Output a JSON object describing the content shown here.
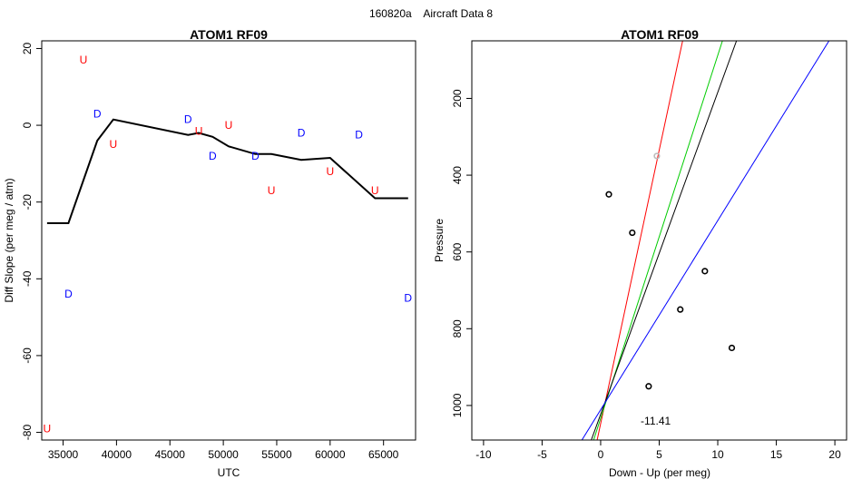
{
  "figure": {
    "title_code": "160820a",
    "title_text": "Aircraft Data 8"
  },
  "chart_data": [
    {
      "type": "scatter",
      "title": "ATOM1 RF09",
      "xlabel": "UTC",
      "ylabel": "Diff Slope (per meg / atm)",
      "xlim": [
        33000,
        68000
      ],
      "ylim": [
        -82,
        22
      ],
      "xticks": [
        35000,
        40000,
        45000,
        50000,
        55000,
        60000,
        65000
      ],
      "yticks": [
        -80,
        -60,
        -40,
        -20,
        0,
        20
      ],
      "line": {
        "x": [
          33500,
          35500,
          38200,
          39700,
          46700,
          47700,
          49000,
          50500,
          53000,
          54500,
          57300,
          60000,
          64200,
          67300
        ],
        "y": [
          -25.5,
          -25.5,
          -4,
          1.5,
          -2.5,
          -2,
          -3,
          -5.5,
          -7.5,
          -7.5,
          -9,
          -8.5,
          -19,
          -19
        ]
      },
      "points": [
        {
          "label": "U",
          "x": 33500,
          "y": -79
        },
        {
          "label": "U",
          "x": 36900,
          "y": 17
        },
        {
          "label": "D",
          "x": 35500,
          "y": -44
        },
        {
          "label": "D",
          "x": 38200,
          "y": 3
        },
        {
          "label": "U",
          "x": 39700,
          "y": -5
        },
        {
          "label": "D",
          "x": 46700,
          "y": 1.5
        },
        {
          "label": "U",
          "x": 47700,
          "y": -1.5
        },
        {
          "label": "D",
          "x": 49000,
          "y": -8
        },
        {
          "label": "U",
          "x": 50500,
          "y": 0
        },
        {
          "label": "D",
          "x": 53000,
          "y": -8
        },
        {
          "label": "U",
          "x": 54500,
          "y": -17
        },
        {
          "label": "D",
          "x": 57300,
          "y": -2
        },
        {
          "label": "U",
          "x": 60000,
          "y": -12
        },
        {
          "label": "D",
          "x": 62700,
          "y": -2.5
        },
        {
          "label": "U",
          "x": 64200,
          "y": -17
        },
        {
          "label": "D",
          "x": 67300,
          "y": -45
        }
      ],
      "colors": {
        "U": "#ff0000",
        "D": "#0000ff",
        "line": "#000000"
      }
    },
    {
      "type": "scatter",
      "title": "ATOM1 RF09",
      "xlabel": "Down - Up (per meg)",
      "ylabel": "Pressure",
      "xlim": [
        -11,
        21
      ],
      "ylim": [
        1090,
        50
      ],
      "y_reversed": true,
      "xticks": [
        -10,
        -5,
        0,
        5,
        10,
        15,
        20
      ],
      "yticks": [
        200,
        400,
        600,
        800,
        1000
      ],
      "points": [
        {
          "x": 0.7,
          "y": 450,
          "color": "#000000"
        },
        {
          "x": 2.7,
          "y": 550,
          "color": "#000000"
        },
        {
          "x": 4.8,
          "y": 350,
          "color": "#bbbbbb"
        },
        {
          "x": 8.9,
          "y": 650,
          "color": "#000000"
        },
        {
          "x": 6.8,
          "y": 750,
          "color": "#000000"
        },
        {
          "x": 11.2,
          "y": 850,
          "color": "#000000"
        },
        {
          "x": 4.1,
          "y": 950,
          "color": "#000000"
        }
      ],
      "lines": [
        {
          "color": "#ff0000",
          "x": [
            -0.3,
            7.0
          ],
          "y": [
            1090,
            50
          ]
        },
        {
          "color": "#00cc00",
          "x": [
            -0.6,
            10.4
          ],
          "y": [
            1090,
            50
          ]
        },
        {
          "color": "#000000",
          "x": [
            -0.8,
            11.6
          ],
          "y": [
            1090,
            50
          ]
        },
        {
          "color": "#0000ff",
          "x": [
            -1.6,
            19.5
          ],
          "y": [
            1090,
            50
          ]
        }
      ],
      "annotation": {
        "text": "-11.41",
        "x": 4.7,
        "y": 1040
      }
    }
  ]
}
